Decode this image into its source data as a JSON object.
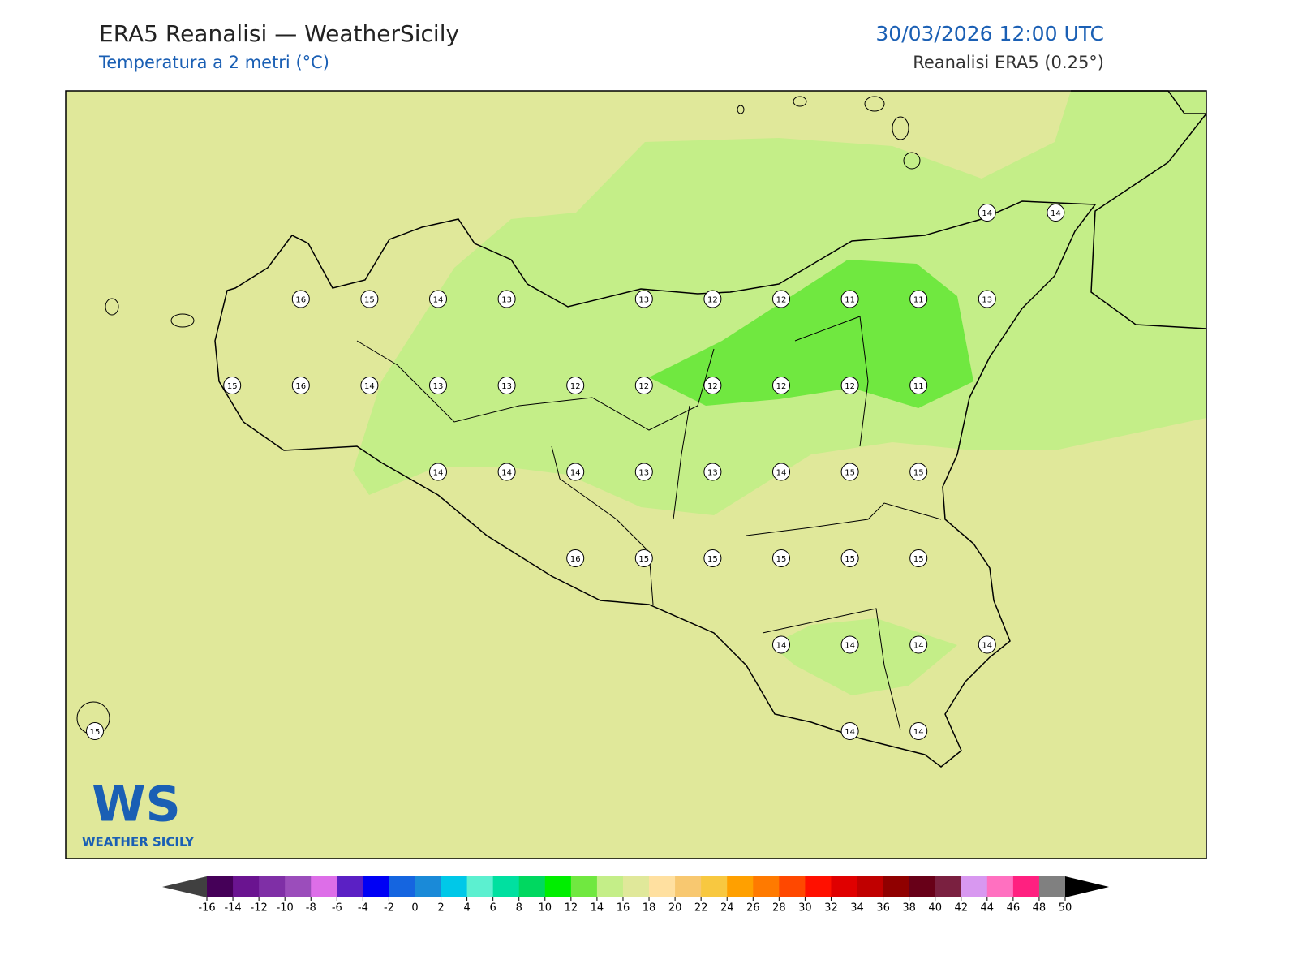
{
  "header": {
    "title": "ERA5 Reanalisi — WeatherSicily",
    "subtitle": "Temperatura a 2 metri (°C)",
    "datetime": "30/03/2026 12:00 UTC",
    "source": "Reanalisi ERA5 (0.25°)"
  },
  "logo": {
    "mark": "WS",
    "text": "WEATHER SICILY"
  },
  "stations": [
    [
      null,
      null,
      null,
      null,
      null,
      null,
      null,
      null,
      null,
      null,
      null,
      null,
      null,
      14,
      14
    ],
    [
      null,
      null,
      null,
      16,
      15,
      14,
      13,
      null,
      13,
      12,
      12,
      11,
      11,
      13,
      null
    ],
    [
      null,
      null,
      15,
      16,
      14,
      13,
      13,
      12,
      12,
      12,
      12,
      12,
      11,
      null,
      null
    ],
    [
      null,
      null,
      null,
      null,
      null,
      14,
      14,
      14,
      13,
      13,
      14,
      15,
      15,
      null,
      null
    ],
    [
      null,
      null,
      null,
      null,
      null,
      null,
      null,
      16,
      15,
      15,
      15,
      15,
      15,
      null,
      null
    ],
    [
      null,
      null,
      null,
      null,
      null,
      null,
      null,
      null,
      null,
      null,
      14,
      14,
      14,
      14,
      null
    ],
    [
      15,
      null,
      null,
      null,
      null,
      null,
      null,
      null,
      null,
      null,
      null,
      14,
      14,
      null,
      null
    ]
  ],
  "colorbar": {
    "ticks": [
      -16,
      -14,
      -12,
      -10,
      -8,
      -6,
      -4,
      -2,
      0,
      2,
      4,
      6,
      8,
      10,
      12,
      14,
      16,
      18,
      20,
      22,
      24,
      26,
      28,
      30,
      32,
      34,
      36,
      38,
      40,
      42,
      44,
      46,
      48,
      50
    ],
    "colors": [
      "#450058",
      "#6a1490",
      "#7f2fa6",
      "#9b4dbb",
      "#dd6ee8",
      "#5b20c4",
      "#0000f5",
      "#1565e0",
      "#1a8ad8",
      "#00c8e8",
      "#5cf0d0",
      "#00e0a0",
      "#00d860",
      "#00ee00",
      "#70e840",
      "#c4ee88",
      "#e0e89a",
      "#ffe0a0",
      "#f8c870",
      "#f8c840",
      "#ffa000",
      "#ff7a00",
      "#ff4800",
      "#ff1000",
      "#e00000",
      "#c00000",
      "#900000",
      "#680018",
      "#7a2040",
      "#d898f0",
      "#ff70c0",
      "#ff2080",
      "#808080"
    ],
    "under_color": "#404040",
    "over_color": "#000000"
  }
}
